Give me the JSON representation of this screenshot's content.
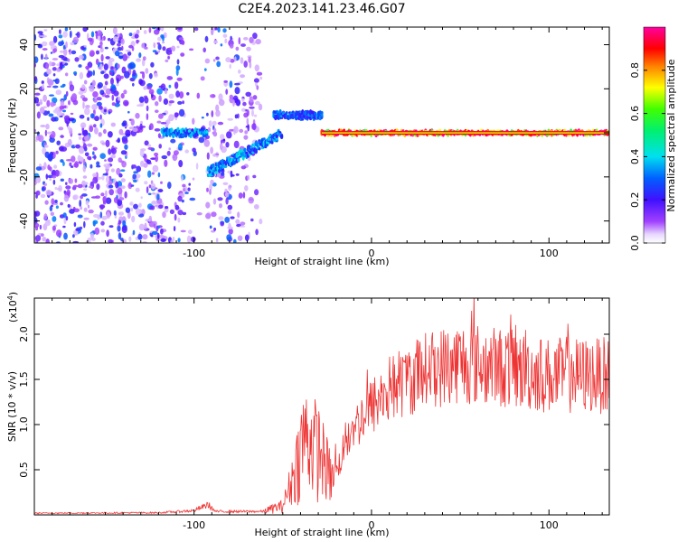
{
  "title": "C2E4.2023.141.23.46.G07",
  "chart_data": [
    {
      "type": "heatmap",
      "xlabel": "Height of straight line (km)",
      "ylabel": "Frequency (Hz)",
      "xlim": [
        -190,
        134
      ],
      "ylim": [
        -50,
        48
      ],
      "xticks": [
        -100,
        0,
        100
      ],
      "yticks": [
        -40,
        -20,
        0,
        20,
        40
      ],
      "xtick_labels": [
        "-100",
        "0",
        "100"
      ],
      "ytick_labels": [
        "-40",
        "-20",
        "0",
        "20",
        "40"
      ],
      "colorbar": {
        "label": "Normalized spectral amplitude",
        "range": [
          0,
          1
        ],
        "ticks": [
          0.0,
          0.2,
          0.4,
          0.6,
          0.8
        ],
        "tick_labels": [
          "0.0",
          "0.2",
          "0.4",
          "0.6",
          "0.8"
        ],
        "colormap": "rainbow (white-violet-blue-cyan-green-yellow-red-magenta)"
      },
      "features": [
        {
          "name": "noise",
          "x_range": [
            -190,
            -62
          ],
          "freq_range": [
            -50,
            48
          ],
          "amplitude": 0.15
        },
        {
          "name": "segment",
          "x_range": [
            -118,
            -92
          ],
          "freq_range": [
            -2,
            2
          ],
          "amplitude": 0.35
        },
        {
          "name": "rising segment",
          "x_range": [
            -92,
            -50
          ],
          "freq_range": [
            -18,
            0
          ],
          "amplitude": 0.35
        },
        {
          "name": "upper segment",
          "x_range": [
            -55,
            -28
          ],
          "freq_range": [
            4,
            12
          ],
          "amplitude": 0.3
        },
        {
          "name": "steady tone",
          "x_range": [
            -28,
            134
          ],
          "freq_range": [
            -2,
            2
          ],
          "amplitude": 0.9
        }
      ]
    },
    {
      "type": "line",
      "xlabel": "Height of straight line (km)",
      "ylabel": "SNR (10 * v/v)",
      "multiplier": "(x10",
      "multiplier_exp": "4",
      "multiplier_close": ")",
      "xlim": [
        -190,
        134
      ],
      "ylim": [
        0,
        24000
      ],
      "xticks": [
        -100,
        0,
        100
      ],
      "yticks": [
        5000,
        10000,
        15000,
        20000
      ],
      "xtick_labels": [
        "-100",
        "0",
        "100"
      ],
      "ytick_labels": [
        "0.5",
        "1.0",
        "1.5",
        "2.0"
      ],
      "color": "#ee3333",
      "envelope": [
        {
          "x": -190,
          "y": 200
        },
        {
          "x": -120,
          "y": 250
        },
        {
          "x": -100,
          "y": 500
        },
        {
          "x": -92,
          "y": 1200
        },
        {
          "x": -88,
          "y": 400
        },
        {
          "x": -60,
          "y": 400
        },
        {
          "x": -50,
          "y": 800
        },
        {
          "x": -45,
          "y": 3000
        },
        {
          "x": -38,
          "y": 7000
        },
        {
          "x": -30,
          "y": 6000
        },
        {
          "x": -22,
          "y": 3000
        },
        {
          "x": -15,
          "y": 8000
        },
        {
          "x": -5,
          "y": 11000
        },
        {
          "x": 10,
          "y": 14000
        },
        {
          "x": 30,
          "y": 16000
        },
        {
          "x": 50,
          "y": 17000
        },
        {
          "x": 70,
          "y": 16500
        },
        {
          "x": 100,
          "y": 15500
        },
        {
          "x": 134,
          "y": 15500
        }
      ]
    }
  ]
}
